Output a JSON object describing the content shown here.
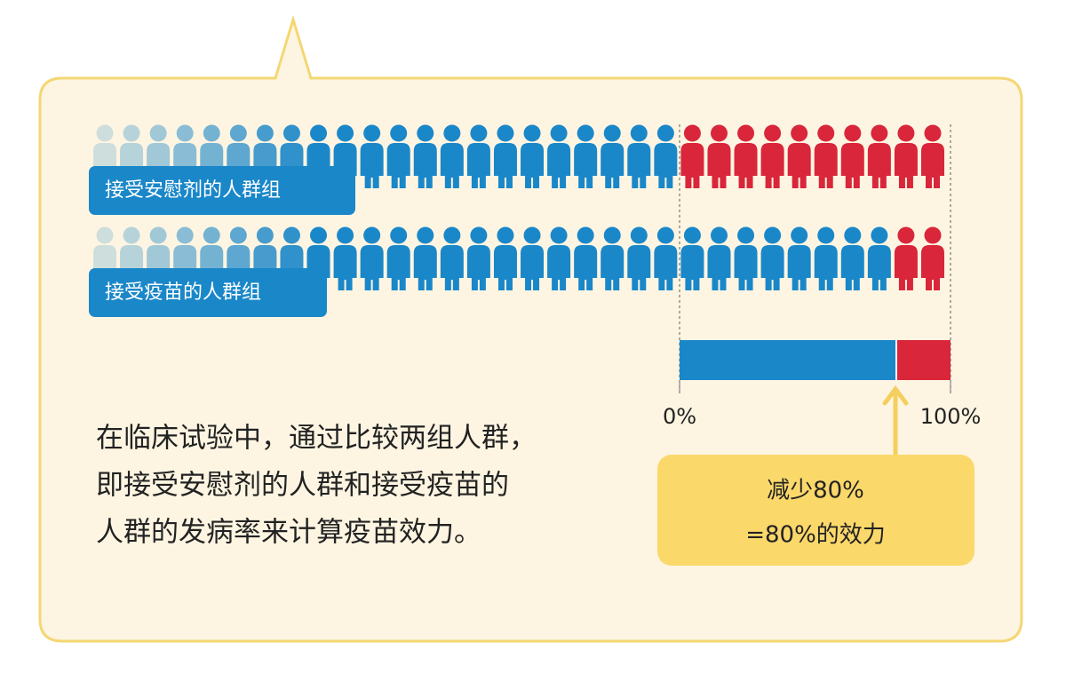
{
  "rows": [
    {
      "label": "接受安慰剂的人群组",
      "healthy": 22,
      "sick": 10
    },
    {
      "label": "接受疫苗的人群组",
      "healthy": 30,
      "sick": 2
    }
  ],
  "scale": {
    "ticks": [
      {
        "value": 0,
        "label": "0%"
      },
      {
        "value": 100,
        "label": "100%"
      }
    ],
    "split": 80
  },
  "callout": {
    "lines": [
      "减少80%",
      "=80%的效力"
    ]
  },
  "description": {
    "lines": [
      "在临床试验中，通过比较两组人群，",
      "即接受安慰剂的人群和接受疫苗的",
      "人群的发病率来计算疫苗效力。"
    ]
  }
}
